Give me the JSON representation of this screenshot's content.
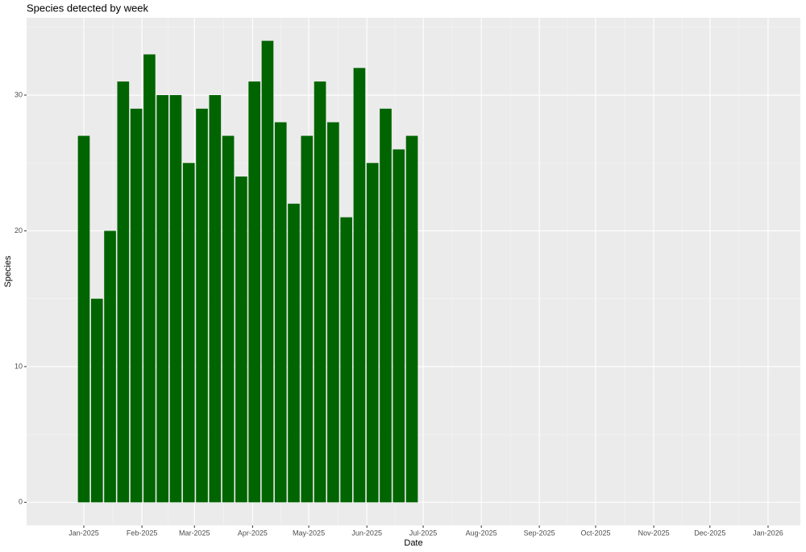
{
  "chart_data": {
    "type": "bar",
    "title": "Species detected by week",
    "x_label": "Date",
    "y_label": "Species",
    "x": [
      0,
      1,
      2,
      3,
      4,
      5,
      6,
      7,
      8,
      9,
      10,
      11,
      12,
      13,
      14,
      15,
      16,
      17,
      18,
      19,
      20,
      21,
      22,
      23,
      24,
      25
    ],
    "values": [
      27,
      15,
      20,
      31,
      29,
      33,
      30,
      30,
      25,
      29,
      30,
      27,
      24,
      31,
      34,
      28,
      22,
      27,
      31,
      28,
      21,
      32,
      25,
      29,
      26,
      27
    ],
    "color": "#006400",
    "xlim": [
      -4.36,
      54.6
    ],
    "xticks": [
      {
        "value": 0,
        "label": "Jan-2025"
      },
      {
        "value": 4.43,
        "label": "Feb-2025"
      },
      {
        "value": 8.43,
        "label": "Mar-2025"
      },
      {
        "value": 12.86,
        "label": "Apr-2025"
      },
      {
        "value": 17.14,
        "label": "May-2025"
      },
      {
        "value": 21.57,
        "label": "Jun-2025"
      },
      {
        "value": 25.86,
        "label": "Jul-2025"
      },
      {
        "value": 30.29,
        "label": "Aug-2025"
      },
      {
        "value": 34.71,
        "label": "Sep-2025"
      },
      {
        "value": 39,
        "label": "Oct-2025"
      },
      {
        "value": 43.43,
        "label": "Nov-2025"
      },
      {
        "value": 47.71,
        "label": "Dec-2025"
      },
      {
        "value": 52.14,
        "label": "Jan-2026"
      }
    ],
    "ylim": [
      -1.7,
      35.7
    ],
    "yticks": [
      0,
      10,
      20,
      30
    ],
    "grid": true
  }
}
